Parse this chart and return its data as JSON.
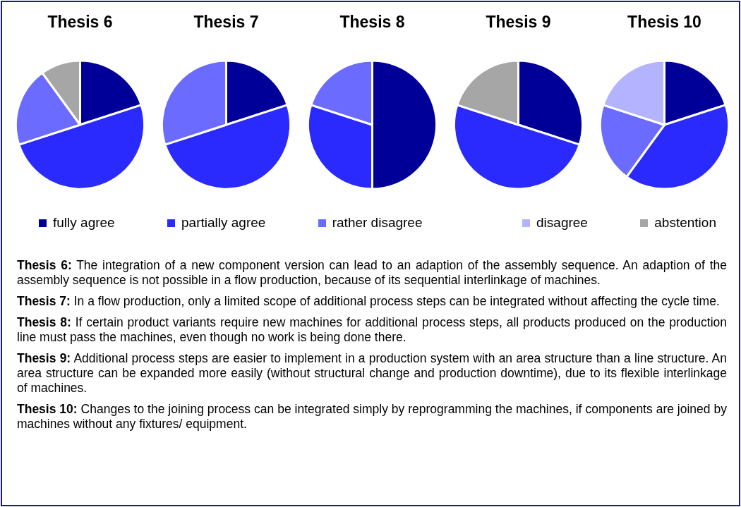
{
  "chart_data": [
    {
      "type": "pie",
      "title": "Thesis 6",
      "categories": [
        "fully agree",
        "partially agree",
        "rather disagree",
        "disagree",
        "abstention"
      ],
      "values": [
        20,
        50,
        20,
        0,
        10
      ],
      "colors": [
        "#000099",
        "#2a2aff",
        "#6b6bff",
        "#b3b3ff",
        "#a6a6a6"
      ],
      "legend": "bottom"
    },
    {
      "type": "pie",
      "title": "Thesis 7",
      "categories": [
        null,
        null,
        null,
        null,
        null
      ],
      "values": [
        20,
        50,
        30,
        0,
        0
      ],
      "colors": [
        "#000099",
        "#2a2aff",
        "#6b6bff",
        "#b3b3ff",
        "#a6a6a6"
      ]
    },
    {
      "type": "pie",
      "title": "Thesis 8",
      "categories": [
        null,
        null,
        null,
        null,
        null
      ],
      "values": [
        50,
        30,
        20,
        0,
        0
      ],
      "colors": [
        "#000099",
        "#2a2aff",
        "#6b6bff",
        "#b3b3ff",
        "#a6a6a6"
      ]
    },
    {
      "type": "pie",
      "title": "Thesis 9",
      "categories": [
        null,
        null,
        null,
        null,
        null
      ],
      "values": [
        30,
        50,
        0,
        0,
        20
      ],
      "colors": [
        "#000099",
        "#2a2aff",
        "#6b6bff",
        "#b3b3ff",
        "#a6a6a6"
      ]
    },
    {
      "type": "pie",
      "title": "Thesis 10",
      "categories": [
        null,
        null,
        null,
        null,
        null
      ],
      "values": [
        20,
        40,
        20,
        20,
        0
      ],
      "colors": [
        "#000099",
        "#2a2aff",
        "#6b6bff",
        "#b3b3ff",
        "#a6a6a6"
      ]
    },
    {
      "type": "other",
      "annotations": [
        "Thesis 6: The integration of a new component version can lead to an adaption of the assembly sequence. An adaption of the assembly sequence is not possible in a flow production, because of its sequential interlinkage of machines.",
        "Thesis 7: In a flow production, only a limited scope of additional process steps can be integrated without affecting the cycle time.",
        "Thesis 8: If certain product variants require new machines for additional process steps, all products produced on the production line must pass the machines, even though no work is being done there.",
        "Thesis 9: Additional process steps are easier to implement in a production system with an area structure than a line structure. An area structure can be expanded more easily (without structural change and production downtime), due to its flexible interlinkage of machines.",
        "Thesis 10: Changes to the joining process can be integrated simply by reprogramming the machines, if components are joined by machines without any fixtures/ equipment."
      ]
    }
  ]
}
